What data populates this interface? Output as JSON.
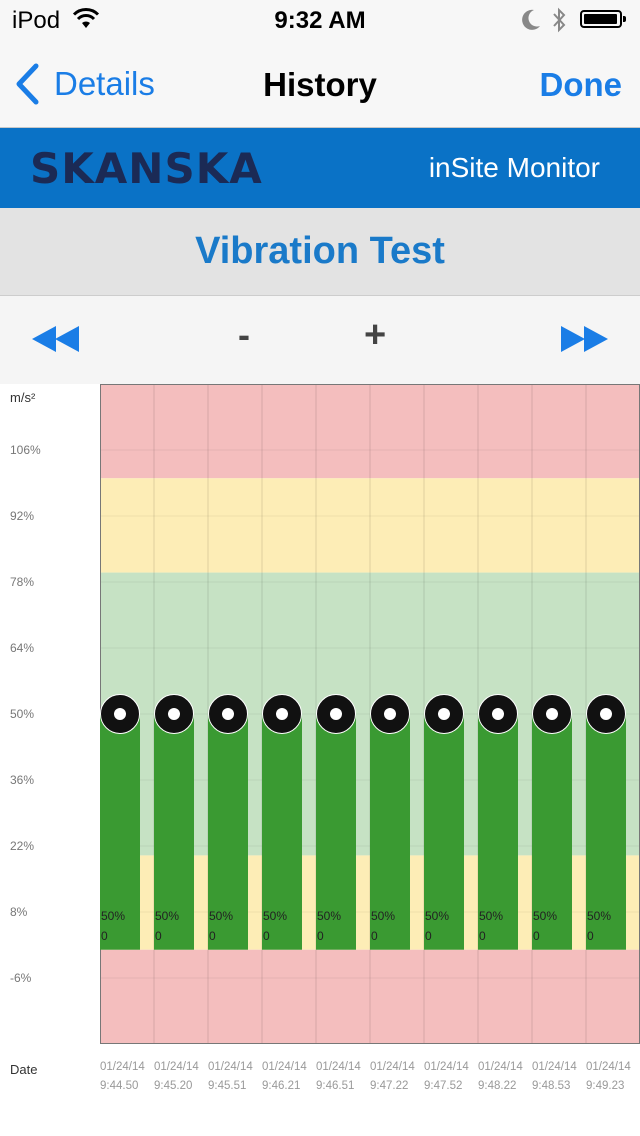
{
  "status_bar": {
    "carrier": "iPod",
    "time": "9:32 AM"
  },
  "nav": {
    "back_label": "Details",
    "title": "History",
    "done_label": "Done",
    "accent": "#1a7de6"
  },
  "brand": {
    "logo": "SKANSKA",
    "app_name": "inSite Monitor",
    "color": "#0a72c6"
  },
  "sensor": {
    "title": "Vibration Test"
  },
  "controls": {
    "minus": "-",
    "plus": "+"
  },
  "chart_data": {
    "type": "bar",
    "ylabel": "m/s²",
    "xlabel": "Date",
    "y_ticks": [
      "106%",
      "92%",
      "78%",
      "64%",
      "50%",
      "36%",
      "22%",
      "8%",
      "-6%"
    ],
    "y_tick_values": [
      106,
      92,
      78,
      64,
      50,
      36,
      22,
      8,
      -6
    ],
    "ylim": [
      -20,
      120
    ],
    "categories": [
      [
        "01/24/14",
        "9:44.50"
      ],
      [
        "01/24/14",
        "9:45.20"
      ],
      [
        "01/24/14",
        "9:45.51"
      ],
      [
        "01/24/14",
        "9:46.21"
      ],
      [
        "01/24/14",
        "9:46.51"
      ],
      [
        "01/24/14",
        "9:47.22"
      ],
      [
        "01/24/14",
        "9:47.52"
      ],
      [
        "01/24/14",
        "9:48.22"
      ],
      [
        "01/24/14",
        "9:48.53"
      ],
      [
        "01/24/14",
        "9:49.23"
      ]
    ],
    "values": [
      50,
      50,
      50,
      50,
      50,
      50,
      50,
      50,
      50,
      50
    ],
    "bar_labels": [
      "50%",
      "50%",
      "50%",
      "50%",
      "50%",
      "50%",
      "50%",
      "50%",
      "50%",
      "50%"
    ],
    "bar_sublabels": [
      "0",
      "0",
      "0",
      "0",
      "0",
      "0",
      "0",
      "0",
      "0",
      "0"
    ],
    "bar_base": 0,
    "bands": [
      {
        "from": 100,
        "to": 120,
        "color": "#f4bebe"
      },
      {
        "from": 80,
        "to": 100,
        "color": "#fdedb6"
      },
      {
        "from": 20,
        "to": 80,
        "color": "#c6e2c4"
      },
      {
        "from": 0,
        "to": 20,
        "color": "#fdedb6"
      },
      {
        "from": -20,
        "to": 0,
        "color": "#f4bebe"
      }
    ],
    "bar_color": "#3a9a32",
    "grid": true
  }
}
